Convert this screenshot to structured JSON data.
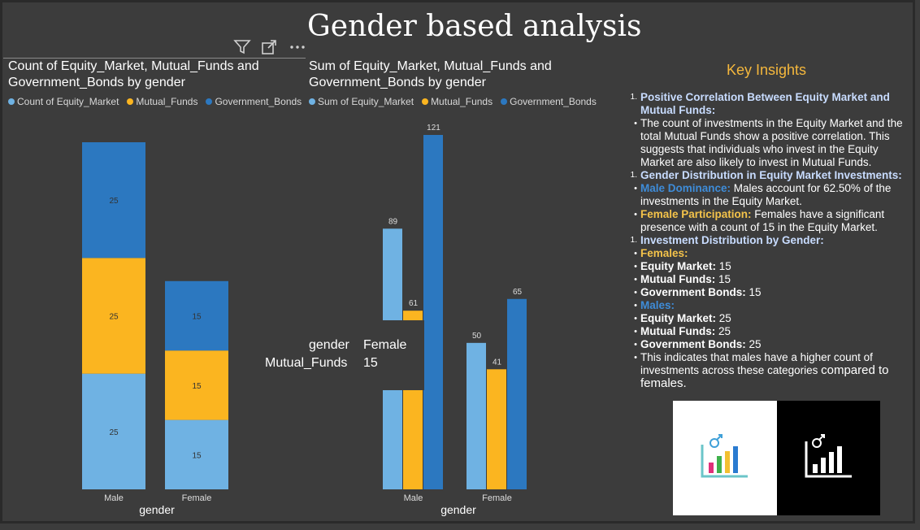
{
  "page": {
    "title": "Gender based analysis"
  },
  "toolbar": {
    "icons": [
      "filter-icon",
      "focus-mode-icon",
      "more-options-icon"
    ]
  },
  "colors": {
    "equity": "#6fb2e3",
    "mutual": "#fbb520",
    "gov": "#2c78c0",
    "accent": "#f4b73c",
    "insight_head": "#c8dcff"
  },
  "chart_left": {
    "title": "Count of Equity_Market, Mutual_Funds and Government_Bonds by gender",
    "legend": [
      "Count of Equity_Market",
      "Mutual_Funds",
      "Government_Bonds"
    ],
    "xlabel": "gender"
  },
  "chart_right": {
    "title": "Sum of Equity_Market, Mutual_Funds and Government_Bonds by gender",
    "legend": [
      "Sum of Equity_Market",
      "Mutual_Funds",
      "Government_Bonds"
    ],
    "xlabel": "gender"
  },
  "chart_data": [
    {
      "type": "bar",
      "stacked": true,
      "title": "Count of Equity_Market, Mutual_Funds and Government_Bonds by gender",
      "categories": [
        "Male",
        "Female"
      ],
      "xlabel": "gender",
      "series": [
        {
          "name": "Count of Equity_Market",
          "values": [
            25,
            15
          ]
        },
        {
          "name": "Mutual_Funds",
          "values": [
            25,
            15
          ]
        },
        {
          "name": "Government_Bonds",
          "values": [
            25,
            15
          ]
        }
      ],
      "legend": "top",
      "grid": false
    },
    {
      "type": "bar",
      "stacked": false,
      "title": "Sum of Equity_Market, Mutual_Funds and Government_Bonds by gender",
      "categories": [
        "Male",
        "Female"
      ],
      "xlabel": "gender",
      "series": [
        {
          "name": "Sum of Equity_Market",
          "values": [
            89,
            50
          ]
        },
        {
          "name": "Mutual_Funds",
          "values": [
            61,
            41
          ]
        },
        {
          "name": "Government_Bonds",
          "values": [
            121,
            65
          ]
        }
      ],
      "legend": "top",
      "grid": false
    }
  ],
  "tooltip": {
    "key1": "gender",
    "val1": "Female",
    "key2": "Mutual_Funds",
    "val2": "15"
  },
  "insights": {
    "title": "Key Insights",
    "s1_num": "1.",
    "s1_head": "Positive Correlation Between Equity Market and Mutual Funds:",
    "s1_body": "The count of investments in the Equity Market and the total Mutual Funds show a positive correlation. This suggests that individuals who invest in the Equity Market are also likely to invest in Mutual Funds.",
    "s2_num": "1.",
    "s2_head": "Gender Distribution in Equity Market Investments:",
    "s2_male_label": "Male Dominance:",
    "s2_male_text": " Males account for 62.50% of the investments in the Equity Market.",
    "s2_female_label": "Female Participation:",
    "s2_female_text": " Females have a significant presence with a count of 15 in the Equity Market.",
    "s3_num": "1.",
    "s3_head": "Investment Distribution by Gender:",
    "females_label": "Females:",
    "f_equity_label": "Equity Market:",
    "f_equity_val": " 15",
    "f_mutual_label": "Mutual Funds:",
    "f_mutual_val": " 15",
    "f_gov_label": "Government Bonds:",
    "f_gov_val": " 15",
    "males_label": "Males:",
    "m_equity_label": "Equity Market:",
    "m_equity_val": " 25",
    "m_mutual_label": "Mutual Funds:",
    "m_mutual_val": " 25",
    "m_gov_label": "Government Bonds:",
    "m_gov_val": " 25",
    "conclusion_a": "This indicates that males have a higher count of investments across these categories ",
    "conclusion_b": "compared to females."
  },
  "bullet": "•"
}
